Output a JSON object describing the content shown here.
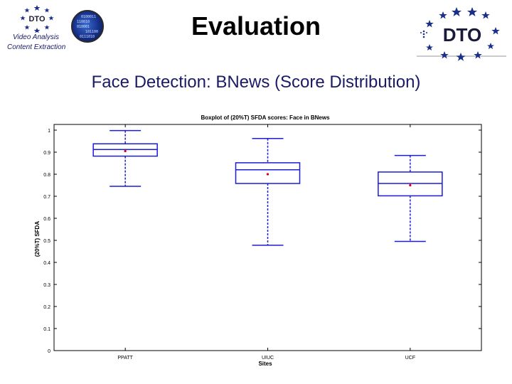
{
  "header": {
    "title": "Evaluation",
    "subtitle": "Face Detection: BNews (Score Distribution)",
    "left_logo": {
      "badge_text": "DTO",
      "line1": "Video Analysis",
      "line2": "Content Extraction",
      "disc_bits": [
        "0100011",
        "110010",
        "010001",
        "101100",
        "0111010"
      ]
    },
    "right_logo": {
      "text": "DTO"
    }
  },
  "chart_data": {
    "type": "boxplot",
    "title": "Boxplot of (20%T) SFDA scores: Face in BNews",
    "xlabel": "Sites",
    "ylabel": "(20%T) SFDA",
    "categories": [
      "PPATT",
      "UIUC",
      "UCF"
    ],
    "ylim": [
      0,
      1.02
    ],
    "yticks": [
      "0",
      "0.1",
      "0.2",
      "0.3",
      "0.4",
      "0.5",
      "0.6",
      "0.7",
      "0.8",
      "0.9",
      "1"
    ],
    "boxes": [
      {
        "category": "PPATT",
        "whisker_low": 0.745,
        "q1": 0.882,
        "median": 0.912,
        "q3": 0.938,
        "whisker_high": 0.998,
        "mean": 0.905
      },
      {
        "category": "UIUC",
        "whisker_low": 0.478,
        "q1": 0.758,
        "median": 0.82,
        "q3": 0.852,
        "whisker_high": 0.962,
        "mean": 0.8
      },
      {
        "category": "UCF",
        "whisker_low": 0.495,
        "q1": 0.702,
        "median": 0.758,
        "q3": 0.81,
        "whisker_high": 0.885,
        "mean": 0.75
      }
    ],
    "grid": false,
    "colors": {
      "box": "#1c1cd6",
      "whisker": "#1c1cd6",
      "mean": "#e00000",
      "frame": "#000000"
    }
  }
}
